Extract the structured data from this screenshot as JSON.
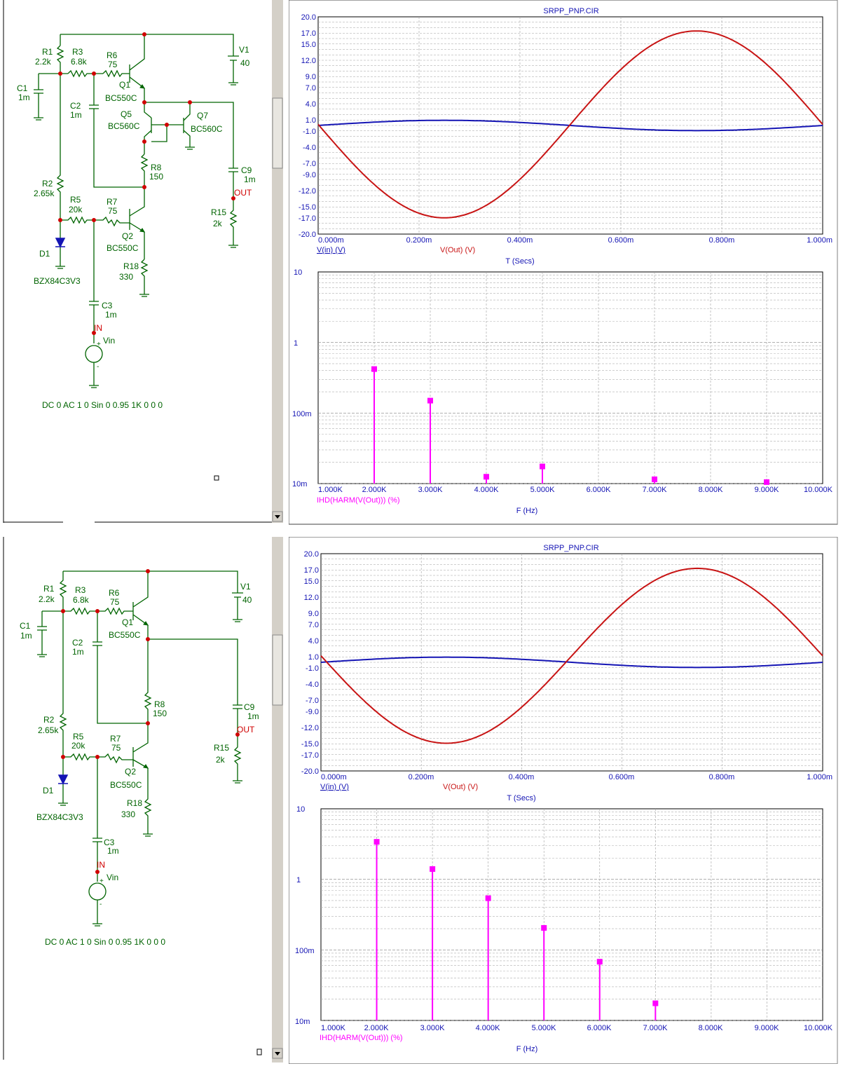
{
  "panels": [
    {
      "schematic": {
        "components": [
          {
            "ref": "R1",
            "value": "2.2k"
          },
          {
            "ref": "R3",
            "value": "6.8k"
          },
          {
            "ref": "R6",
            "value": "75"
          },
          {
            "ref": "C1",
            "value": "1m"
          },
          {
            "ref": "C2",
            "value": "1m"
          },
          {
            "ref": "Q1",
            "value": "BC550C"
          },
          {
            "ref": "Q5",
            "value": "BC560C"
          },
          {
            "ref": "Q7",
            "value": "BC560C"
          },
          {
            "ref": "R8",
            "value": "150"
          },
          {
            "ref": "R2",
            "value": "2.65k"
          },
          {
            "ref": "R5",
            "value": "20k"
          },
          {
            "ref": "R7",
            "value": "75"
          },
          {
            "ref": "Q2",
            "value": "BC550C"
          },
          {
            "ref": "R18",
            "value": "330"
          },
          {
            "ref": "D1",
            "value": "BZX84C3V3"
          },
          {
            "ref": "C3",
            "value": "1m"
          },
          {
            "ref": "V1",
            "value": "40"
          },
          {
            "ref": "C9",
            "value": "1m"
          },
          {
            "ref": "R15",
            "value": "2k"
          }
        ],
        "nodes": {
          "in": "IN",
          "out": "OUT"
        },
        "source_name": "Vin",
        "plus": "+",
        "minus": "-",
        "source_spec": "DC 0 AC 1 0 Sin 0 0.95 1K 0 0 0"
      },
      "transient": {
        "title": "SRPP_PNP.CIR",
        "y_ticks": [
          "20.0",
          "17.0",
          "15.0",
          "12.0",
          "9.0",
          "7.0",
          "4.0",
          "1.0",
          "-1.0",
          "-4.0",
          "-7.0",
          "-9.0",
          "-12.0",
          "-15.0",
          "-17.0",
          "-20.0"
        ],
        "x_ticks": [
          "0.000m",
          "0.200m",
          "0.400m",
          "0.600m",
          "0.800m",
          "1.000m"
        ],
        "xlabel": "T (Secs)",
        "trace_labels": [
          "V(in) (V)",
          "V(Out) (V)"
        ]
      },
      "harmonics": {
        "y_ticks": [
          "10",
          "1",
          "100m",
          "10m"
        ],
        "x_ticks": [
          "1.000K",
          "2.000K",
          "3.000K",
          "4.000K",
          "5.000K",
          "6.000K",
          "7.000K",
          "8.000K",
          "9.000K",
          "10.000K"
        ],
        "xlabel": "F (Hz)",
        "trace_label": "IHD(HARM(V(Out))) (%)"
      }
    },
    {
      "schematic": {
        "components": [
          {
            "ref": "R1",
            "value": "2.2k"
          },
          {
            "ref": "R3",
            "value": "6.8k"
          },
          {
            "ref": "R6",
            "value": "75"
          },
          {
            "ref": "C1",
            "value": "1m"
          },
          {
            "ref": "C2",
            "value": "1m"
          },
          {
            "ref": "Q1",
            "value": "BC550C"
          },
          {
            "ref": "R8",
            "value": "150"
          },
          {
            "ref": "R2",
            "value": "2.65k"
          },
          {
            "ref": "R5",
            "value": "20k"
          },
          {
            "ref": "R7",
            "value": "75"
          },
          {
            "ref": "Q2",
            "value": "BC550C"
          },
          {
            "ref": "R18",
            "value": "330"
          },
          {
            "ref": "D1",
            "value": "BZX84C3V3"
          },
          {
            "ref": "C3",
            "value": "1m"
          },
          {
            "ref": "V1",
            "value": "40"
          },
          {
            "ref": "C9",
            "value": "1m"
          },
          {
            "ref": "R15",
            "value": "2k"
          }
        ],
        "nodes": {
          "in": "IN",
          "out": "OUT"
        },
        "source_name": "Vin",
        "plus": "+",
        "minus": "-",
        "source_spec": "DC 0 AC 1 0 Sin 0 0.95 1K 0 0 0"
      },
      "transient": {
        "title": "SRPP_PNP.CIR",
        "y_ticks": [
          "20.0",
          "17.0",
          "15.0",
          "12.0",
          "9.0",
          "7.0",
          "4.0",
          "1.0",
          "-1.0",
          "-4.0",
          "-7.0",
          "-9.0",
          "-12.0",
          "-15.0",
          "-17.0",
          "-20.0"
        ],
        "x_ticks": [
          "0.000m",
          "0.200m",
          "0.400m",
          "0.600m",
          "0.800m",
          "1.000m"
        ],
        "xlabel": "T (Secs)",
        "trace_labels": [
          "V(in) (V)",
          "V(Out) (V)"
        ]
      },
      "harmonics": {
        "y_ticks": [
          "10",
          "1",
          "100m",
          "10m"
        ],
        "x_ticks": [
          "1.000K",
          "2.000K",
          "3.000K",
          "4.000K",
          "5.000K",
          "6.000K",
          "7.000K",
          "8.000K",
          "9.000K",
          "10.000K"
        ],
        "xlabel": "F (Hz)",
        "trace_label": "IHD(HARM(V(Out))) (%)"
      }
    }
  ],
  "chart_data": [
    {
      "type": "line",
      "panel": "top",
      "title": "SRPP_PNP.CIR",
      "xlabel": "T (Secs)",
      "ylabel": "",
      "x_unit": "ms",
      "xlim": [
        0,
        1.0
      ],
      "ylim": [
        -20,
        20
      ],
      "series": [
        {
          "name": "V(in) (V)",
          "color": "#1414b4",
          "shape": "sine",
          "amplitude": 0.95,
          "phase": 0,
          "offset": 0
        },
        {
          "name": "V(Out) (V)",
          "color": "#c81414",
          "shape": "sine",
          "amplitude": 17.2,
          "phase": 180,
          "offset": 0.2
        }
      ]
    },
    {
      "type": "bar",
      "panel": "top",
      "xlabel": "F (Hz)",
      "ylabel": "",
      "y_scale": "log",
      "ylim": [
        0.01,
        10
      ],
      "xlim": [
        1000,
        10000
      ],
      "color": "#ff00ff",
      "x": [
        2000,
        3000,
        4000,
        5000,
        7000,
        9000
      ],
      "values": [
        0.42,
        0.15,
        0.0125,
        0.0175,
        0.0115,
        0.0105
      ],
      "series_name": "IHD(HARM(V(Out))) (%)"
    },
    {
      "type": "line",
      "panel": "bottom",
      "title": "SRPP_PNP.CIR",
      "xlabel": "T (Secs)",
      "ylabel": "",
      "x_unit": "ms",
      "xlim": [
        0,
        1.0
      ],
      "ylim": [
        -20,
        20
      ],
      "series": [
        {
          "name": "V(in) (V)",
          "color": "#1414b4",
          "shape": "sine",
          "amplitude": 0.95,
          "phase": 0,
          "offset": 0
        },
        {
          "name": "V(Out) (V)",
          "color": "#c81414",
          "shape": "sine",
          "amplitude": 16.1,
          "phase": 180,
          "offset": 1.2
        }
      ]
    },
    {
      "type": "bar",
      "panel": "bottom",
      "xlabel": "F (Hz)",
      "ylabel": "",
      "y_scale": "log",
      "ylim": [
        0.01,
        10
      ],
      "xlim": [
        1000,
        10000
      ],
      "color": "#ff00ff",
      "x": [
        2000,
        3000,
        4000,
        5000,
        6000,
        7000
      ],
      "values": [
        3.4,
        1.4,
        0.54,
        0.205,
        0.068,
        0.0175
      ],
      "series_name": "IHD(HARM(V(Out))) (%)"
    }
  ]
}
